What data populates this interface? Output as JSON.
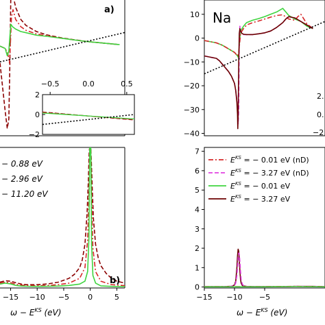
{
  "colors": {
    "dashdot_red": "#d62728",
    "dashed_magenta": "#e040e0",
    "solid_green": "#3fd43f",
    "solid_darkred": "#6b0000",
    "dashed_darkred": "#8b0000",
    "dotted_black": "#000000"
  },
  "chart_data": [
    {
      "id": "top-left",
      "type": "line",
      "panel_label": "a)",
      "xlim": [
        -17,
        7
      ],
      "ylim": [
        -40,
        16
      ],
      "xticks": [],
      "yticks": [],
      "grid": false,
      "series": [
        {
          "style": "dashed",
          "color": "#8b0000",
          "x": [
            -17,
            -16.5,
            -16,
            -15.6,
            -15.3,
            -15.1,
            -14.9,
            -14.5,
            -14,
            -13,
            -12,
            -10,
            -8,
            -5,
            -2,
            0,
            3,
            6
          ],
          "y": [
            -10,
            -20,
            -30,
            -37,
            -33,
            -10,
            20,
            18,
            13,
            8,
            5.5,
            3,
            1.6,
            0.3,
            -0.6,
            -1.2,
            -1.8,
            -2.4
          ]
        },
        {
          "style": "dashdot",
          "color": "#d62728",
          "x": [
            -17,
            -16,
            -15.5,
            -15.2,
            -15,
            -14.8,
            -14.5,
            -14,
            -13,
            -12,
            -10,
            -8,
            -5,
            -2,
            0,
            3,
            6
          ],
          "y": [
            -3,
            -4,
            -6,
            -10,
            -2,
            9,
            12,
            8,
            5,
            3.5,
            2,
            1.2,
            0.2,
            -0.7,
            -1.2,
            -1.8,
            -2.4
          ]
        },
        {
          "style": "solid",
          "color": "#3fd43f",
          "x": [
            -17,
            -16,
            -15.6,
            -15.3,
            -15.1,
            -14.9,
            -14.6,
            -14,
            -13,
            -12,
            -10,
            -8,
            -5,
            -2,
            0,
            3,
            6
          ],
          "y": [
            -3,
            -4,
            -7,
            -5,
            1,
            6,
            5,
            4,
            3,
            2.5,
            1.5,
            1.0,
            0.2,
            -0.7,
            -1.2,
            -1.8,
            -2.4
          ]
        },
        {
          "style": "dotted",
          "color": "#000000",
          "x": [
            -17,
            7
          ],
          "y": [
            -9.5,
            2.6
          ]
        }
      ]
    },
    {
      "id": "top-left-inset",
      "type": "line",
      "xlim": [
        -0.6,
        0.6
      ],
      "ylim": [
        -2,
        2
      ],
      "xticks": [
        "−0.5",
        "0.0",
        "0.5"
      ],
      "xtick_values": [
        -0.5,
        0,
        0.5
      ],
      "yticks": [
        "2",
        "0",
        "−2"
      ],
      "ytick_values": [
        2,
        0,
        -2
      ],
      "series": [
        {
          "style": "dashed",
          "color": "#8b0000",
          "x": [
            -0.6,
            0.6
          ],
          "y": [
            0.25,
            -0.55
          ]
        },
        {
          "style": "dashdot",
          "color": "#d62728",
          "x": [
            -0.6,
            0.6
          ],
          "y": [
            0.2,
            -0.5
          ]
        },
        {
          "style": "solid",
          "color": "#3fd43f",
          "x": [
            -0.6,
            0.6
          ],
          "y": [
            0.15,
            -0.45
          ]
        },
        {
          "style": "dotted",
          "color": "#000000",
          "x": [
            -0.6,
            0.6
          ],
          "y": [
            -1.0,
            0.0
          ]
        }
      ]
    },
    {
      "id": "top-right",
      "type": "line",
      "panel_title": "Na",
      "xlim": [
        -15,
        5
      ],
      "ylim": [
        -41,
        16
      ],
      "xticks": [],
      "yticks": [
        "10",
        "0",
        "−10",
        "−20",
        "−30",
        "−40"
      ],
      "ytick_values": [
        10,
        0,
        -10,
        -20,
        -30,
        -40
      ],
      "grid": false,
      "series": [
        {
          "style": "solid",
          "color": "#3fd43f",
          "x": [
            -15,
            -13,
            -12,
            -11,
            -10,
            -9.5,
            -9.4,
            -9.3,
            -9.2,
            -9.1,
            -9,
            -8.5,
            -8,
            -7,
            -6,
            -5,
            -4,
            -3,
            -2,
            -1,
            0,
            0.5,
            1,
            2,
            3
          ],
          "y": [
            -1,
            -2,
            -3,
            -4.5,
            -6,
            -7.5,
            -8,
            -7,
            -3,
            0,
            3,
            5,
            6.5,
            7.5,
            8.2,
            9,
            10,
            11,
            12.5,
            9.5,
            8,
            7.5,
            7,
            5,
            4
          ]
        },
        {
          "style": "dashdot",
          "color": "#d62728",
          "x": [
            -15,
            -13,
            -12,
            -11,
            -10,
            -9.5,
            -9.3,
            -9.1,
            -9,
            -8.5,
            -8,
            -7,
            -6,
            -5,
            -4,
            -3,
            -2,
            -1,
            0,
            0.5,
            1,
            2,
            3
          ],
          "y": [
            -1,
            -2,
            -3,
            -4.5,
            -6,
            -7.5,
            -6,
            -1,
            2,
            4,
            5.5,
            6.5,
            7.2,
            8,
            8.8,
            9.5,
            9.8,
            8,
            7.5,
            9,
            10,
            6,
            4
          ]
        },
        {
          "style": "dashed",
          "color": "#e040e0",
          "x": [
            -15,
            -14,
            -13,
            -12.5,
            -12,
            -11.5,
            -11,
            -10.5,
            -10,
            -9.8,
            -9.6,
            -9.5,
            -9.4,
            -9.3,
            -9.2,
            -9.1,
            -9,
            -8.8,
            -8.5,
            -8,
            -7,
            -6,
            -5,
            -4,
            -3,
            -2,
            -1.5,
            -1,
            0,
            1,
            2,
            3
          ],
          "y": [
            -7.5,
            -8,
            -8.5,
            -9.5,
            -11,
            -12.5,
            -14,
            -16,
            -19,
            -22,
            -26,
            -30,
            -36,
            -30,
            0,
            5,
            3,
            2,
            1.5,
            1.5,
            1.5,
            1.8,
            2.2,
            3,
            4.5,
            6.5,
            8,
            9,
            8.5,
            7,
            5.5,
            4
          ]
        },
        {
          "style": "solid",
          "color": "#6b0000",
          "x": [
            -15,
            -14,
            -13,
            -12.5,
            -12,
            -11.5,
            -11,
            -10.5,
            -10,
            -9.8,
            -9.6,
            -9.5,
            -9.45,
            -9.4,
            -9.3,
            -9.2,
            -9.1,
            -9,
            -8.8,
            -8.5,
            -8,
            -7,
            -6,
            -5,
            -4,
            -3,
            -2,
            -1.5,
            -1,
            0,
            1,
            2,
            3
          ],
          "y": [
            -7.5,
            -8,
            -8.5,
            -9.5,
            -11,
            -12.5,
            -14,
            -16,
            -19,
            -22,
            -27,
            -32,
            -38,
            -33,
            -10,
            2,
            4,
            3,
            2,
            1.6,
            1.5,
            1.5,
            1.8,
            2.2,
            3,
            4.5,
            6.5,
            8,
            9,
            8.5,
            7,
            5.5,
            4
          ]
        },
        {
          "style": "dotted",
          "color": "#000000",
          "x": [
            -15,
            5
          ],
          "y": [
            -15,
            7
          ]
        }
      ],
      "partial_texts": [
        "2.",
        "0.",
        "−2."
      ]
    },
    {
      "id": "bottom-left",
      "type": "line",
      "panel_label": "b)",
      "xlabel_prefix": "ω − E",
      "xlabel_sup": "KS",
      "xlabel_suffix": " (eV)",
      "xlim": [
        -17,
        6.5
      ],
      "ylim": [
        -0.05,
        7.2
      ],
      "xticks": [
        "−15",
        "−10",
        "−5",
        "0",
        "5"
      ],
      "xtick_values": [
        -15,
        -10,
        -5,
        0,
        5
      ],
      "legend_partial": [
        "− 0.88 eV",
        "− 2.96 eV",
        "− 11.20 eV"
      ],
      "series": [
        {
          "style": "dashed",
          "color": "#8b0000",
          "x": [
            -17,
            -16,
            -15,
            -14,
            -13,
            -12,
            -10,
            -8,
            -6,
            -4,
            -3,
            -2,
            -1.5,
            -1,
            -0.6,
            -0.35,
            -0.2,
            -0.1,
            0,
            0.1,
            0.2,
            0.35,
            0.6,
            1,
            1.5,
            2,
            3,
            4,
            5,
            6.5
          ],
          "y": [
            0.25,
            0.32,
            0.3,
            0.22,
            0.15,
            0.12,
            0.12,
            0.16,
            0.25,
            0.45,
            0.65,
            1.0,
            1.4,
            2.2,
            3.8,
            5.5,
            7,
            7.2,
            7.2,
            7.2,
            6.5,
            5.2,
            3.5,
            2.2,
            1.5,
            1.1,
            0.7,
            0.45,
            0.3,
            0.2
          ]
        },
        {
          "style": "dashdot",
          "color": "#d62728",
          "x": [
            -17,
            -16,
            -15,
            -14,
            -13,
            -12,
            -10,
            -8,
            -6,
            -4,
            -2,
            -1,
            -0.5,
            -0.25,
            -0.1,
            0,
            0.1,
            0.25,
            0.5,
            1,
            2,
            4,
            6.5
          ],
          "y": [
            0.2,
            0.25,
            0.22,
            0.14,
            0.1,
            0.08,
            0.07,
            0.08,
            0.12,
            0.2,
            0.45,
            1.0,
            2.4,
            4.8,
            7.2,
            7.2,
            7.2,
            4.5,
            2.0,
            0.8,
            0.3,
            0.12,
            0.07
          ]
        },
        {
          "style": "solid",
          "color": "#3fd43f",
          "x": [
            -17,
            -16,
            -15,
            -14,
            -13,
            -12,
            -10,
            -8,
            -6,
            -4,
            -2,
            -1,
            -0.5,
            -0.25,
            -0.1,
            0,
            0.1,
            0.25,
            0.5,
            1,
            2,
            4,
            6.5
          ],
          "y": [
            0.15,
            0.2,
            0.16,
            0.08,
            0.05,
            0.04,
            0.03,
            0.04,
            0.05,
            0.08,
            0.15,
            0.3,
            0.8,
            2.5,
            7.2,
            7.2,
            7.2,
            2.2,
            0.6,
            0.2,
            0.06,
            0.03,
            0.02
          ]
        }
      ]
    },
    {
      "id": "bottom-right",
      "type": "line",
      "xlabel_prefix": "ω − E",
      "xlabel_sup": "KS",
      "xlabel_suffix": " (eV)",
      "xlim": [
        -15,
        5
      ],
      "ylim": [
        -0.05,
        7.2
      ],
      "xticks": [
        "−15",
        "−10",
        "−5"
      ],
      "xtick_values": [
        -15,
        -10,
        -5
      ],
      "yticks": [
        "0",
        "1",
        "2",
        "3",
        "4",
        "5",
        "6",
        "7"
      ],
      "ytick_values": [
        0,
        1,
        2,
        3,
        4,
        5,
        6,
        7
      ],
      "legend": [
        {
          "style": "dashdot",
          "color": "#d62728",
          "prefix": "E",
          "sup": "KS",
          "suffix": " = − 0.01 eV (nD)"
        },
        {
          "style": "dashed",
          "color": "#e040e0",
          "prefix": "E",
          "sup": "KS",
          "suffix": " = − 3.27 eV (nD)"
        },
        {
          "style": "solid",
          "color": "#3fd43f",
          "prefix": "E",
          "sup": "KS",
          "suffix": " = − 0.01 eV"
        },
        {
          "style": "solid",
          "color": "#6b0000",
          "prefix": "E",
          "sup": "KS",
          "suffix": " = − 3.27 eV"
        }
      ],
      "series": [
        {
          "style": "solid",
          "color": "#6b0000",
          "x": [
            -15,
            -12,
            -10.5,
            -10,
            -9.8,
            -9.6,
            -9.5,
            -9.4,
            -9.3,
            -9.2,
            -9.1,
            -9.0,
            -8.9,
            -8.7,
            -8.5,
            -8,
            -7,
            -5,
            -2,
            0,
            3,
            5
          ],
          "y": [
            0.02,
            0.02,
            0.04,
            0.1,
            0.3,
            1.0,
            1.6,
            1.95,
            1.85,
            1.4,
            0.8,
            0.4,
            0.2,
            0.08,
            0.05,
            0.03,
            0.02,
            0.02,
            0.02,
            0.03,
            0.03,
            0.02
          ]
        },
        {
          "style": "dashed",
          "color": "#e040e0",
          "x": [
            -15,
            -12,
            -10.5,
            -10,
            -9.8,
            -9.6,
            -9.5,
            -9.4,
            -9.3,
            -9.2,
            -9.1,
            -9.0,
            -8.9,
            -8.7,
            -8.5,
            -8,
            -7,
            -5,
            -2,
            0,
            3,
            5
          ],
          "y": [
            0.02,
            0.02,
            0.04,
            0.08,
            0.2,
            0.6,
            1.0,
            1.5,
            1.75,
            1.7,
            1.3,
            0.8,
            0.4,
            0.15,
            0.07,
            0.03,
            0.02,
            0.02,
            0.02,
            0.03,
            0.03,
            0.02
          ]
        },
        {
          "style": "dashdot",
          "color": "#d62728",
          "x": [
            -15,
            -10,
            -5,
            0,
            5
          ],
          "y": [
            0.02,
            0.02,
            0.02,
            0.03,
            0.02
          ]
        },
        {
          "style": "solid",
          "color": "#3fd43f",
          "x": [
            -15,
            -10,
            -5,
            0,
            5
          ],
          "y": [
            0.01,
            0.01,
            0.01,
            0.02,
            0.01
          ]
        }
      ]
    }
  ]
}
